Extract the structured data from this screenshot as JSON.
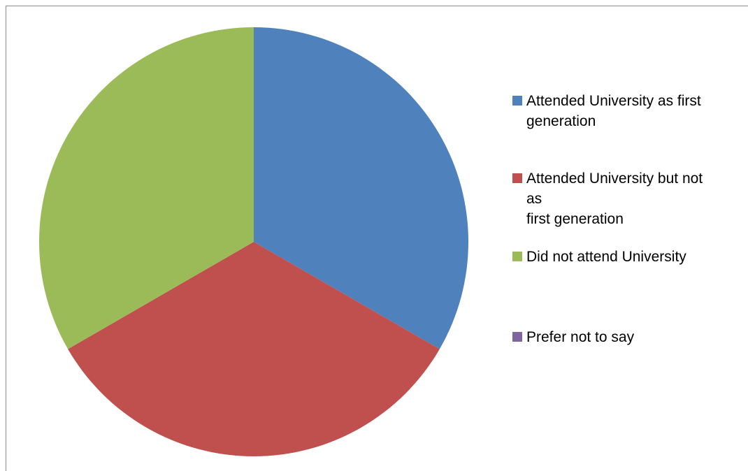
{
  "chart_data": {
    "type": "pie",
    "title": "",
    "slices": [
      {
        "label": "Attended University as first\ngeneration",
        "value": 1,
        "color": "#4f81bd"
      },
      {
        "label": "Attended University but not\nas\nfirst generation",
        "value": 1,
        "color": "#c0504d"
      },
      {
        "label": "Did not attend University",
        "value": 1,
        "color": "#9bbb59"
      },
      {
        "label": "Prefer not to say",
        "value": 0,
        "color": "#8064a2"
      }
    ],
    "legend_position": "right"
  }
}
